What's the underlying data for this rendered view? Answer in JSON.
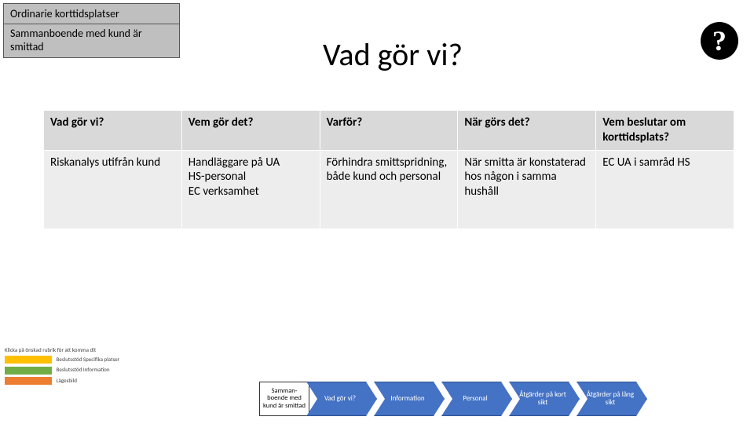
{
  "colors": {
    "header_bg": "#bfbfbf",
    "table_header_bg": "#d9d9d9",
    "table_cell_bg": "#ededed",
    "chevron_fill": "#4472c4",
    "chevron_border": "#2f528f",
    "help_bg": "#000000",
    "text": "#000000",
    "yellow_bar": "#ffc000",
    "green_bar": "#70ad47",
    "orange_bar": "#ed7d31"
  },
  "header": {
    "box1": "Ordinarie korttidsplatser",
    "box2": "Sammanboende med kund är smittad",
    "title": "Vad gör vi?",
    "help": "?"
  },
  "table": {
    "columns": [
      "Vad gör vi?",
      "Vem gör det?",
      "Varför?",
      "När görs det?",
      "Vem beslutar om korttidsplats?"
    ],
    "rows": [
      [
        "Riskanalys utifrån kund",
        "Handläggare på UA\nHS-personal\nEC verksamhet",
        "Förhindra smittspridning, både kund och personal",
        "När smitta är konstaterad hos någon i samma hushåll",
        "EC UA i samråd HS"
      ]
    ]
  },
  "footnote": {
    "line0": "Klicka på önskad rubrik för att komma dit",
    "rows": [
      {
        "color": "#ffc000",
        "text": "Beslutsstöd Specifika platser"
      },
      {
        "color": "#70ad47",
        "text": "Beslutsstöd Information"
      },
      {
        "color": "#ed7d31",
        "text": "Lägesbild"
      }
    ]
  },
  "nav": {
    "box": "Samman-boende med kund är smittad",
    "items": [
      "Vad gör vi?",
      "Information",
      "Personal",
      "Åtgärder på kort sikt",
      "Åtgärder på lång sikt"
    ]
  }
}
